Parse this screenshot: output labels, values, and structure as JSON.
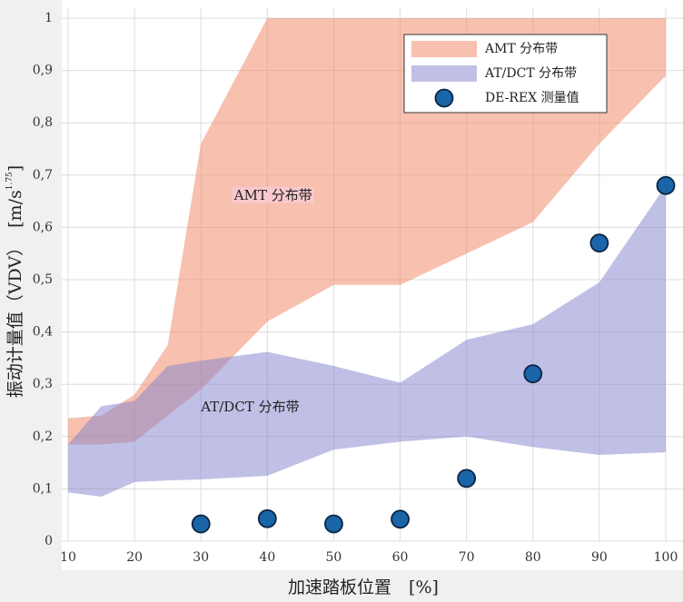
{
  "chart_data": {
    "type": "band",
    "x_label": "加速踏板位置　[%]",
    "y_label": "振动计量值（VDV）",
    "y_unit": "[m/s",
    "y_unit_power": "1.75",
    "y_unit_end": "]",
    "xlim": [
      10,
      100
    ],
    "ylim": [
      0,
      1
    ],
    "xticks": [
      10,
      20,
      30,
      40,
      50,
      60,
      70,
      80,
      90,
      100
    ],
    "yticks": [
      0,
      {
        "value": 0.1,
        "label": "0,1"
      },
      {
        "value": 0.2,
        "label": "0,2"
      },
      {
        "value": 0.3,
        "label": "0,3"
      },
      {
        "value": 0.4,
        "label": "0,4"
      },
      {
        "value": 0.5,
        "label": "0,5"
      },
      {
        "value": 0.6,
        "label": "0,6"
      },
      {
        "value": 0.7,
        "label": "0,7"
      },
      {
        "value": 0.8,
        "label": "0,8"
      },
      {
        "value": 0.9,
        "label": "0,9"
      },
      1
    ],
    "grid": true,
    "legend": "upper right",
    "x": [
      10,
      15,
      20,
      25,
      30,
      40,
      50,
      60,
      70,
      80,
      90,
      100
    ],
    "bands": [
      {
        "name": "AMT 分布带",
        "color": "rgba(240,140,110,0.55)",
        "upper": [
          0.235,
          0.24,
          0.28,
          0.375,
          0.76,
          1,
          1,
          1,
          1,
          1,
          1,
          1
        ],
        "lower": [
          0.185,
          0.185,
          0.19,
          0.24,
          0.29,
          0.42,
          0.49,
          0.49,
          0.55,
          0.61,
          0.76,
          0.89
        ]
      },
      {
        "name": "AT/DCT 分布带",
        "color": "rgba(130,130,205,0.5)",
        "upper": [
          0.185,
          0.258,
          0.268,
          0.335,
          0.345,
          0.362,
          0.335,
          0.303,
          0.385,
          0.415,
          0.495,
          0.68
        ],
        "lower": [
          0.093,
          0.085,
          0.113,
          0.116,
          0.118,
          0.125,
          0.175,
          0.19,
          0.2,
          0.18,
          0.165,
          0.17
        ]
      }
    ],
    "points": {
      "name": "DE-REX 测量值",
      "color": "#1a64a8",
      "x": [
        30,
        40,
        50,
        60,
        70,
        80,
        90,
        100
      ],
      "values": [
        0.033,
        0.043,
        0.033,
        0.042,
        0.12,
        0.32,
        0.57,
        0.68
      ]
    },
    "annotations": [
      {
        "text": "AMT 分布带",
        "x": 35,
        "y": 0.66,
        "color": "#d0204a",
        "background": "#f8c8cc"
      },
      {
        "text": "AT/DCT 分布带",
        "x": 30,
        "y": 0.255,
        "color": "#4040c0"
      }
    ]
  }
}
